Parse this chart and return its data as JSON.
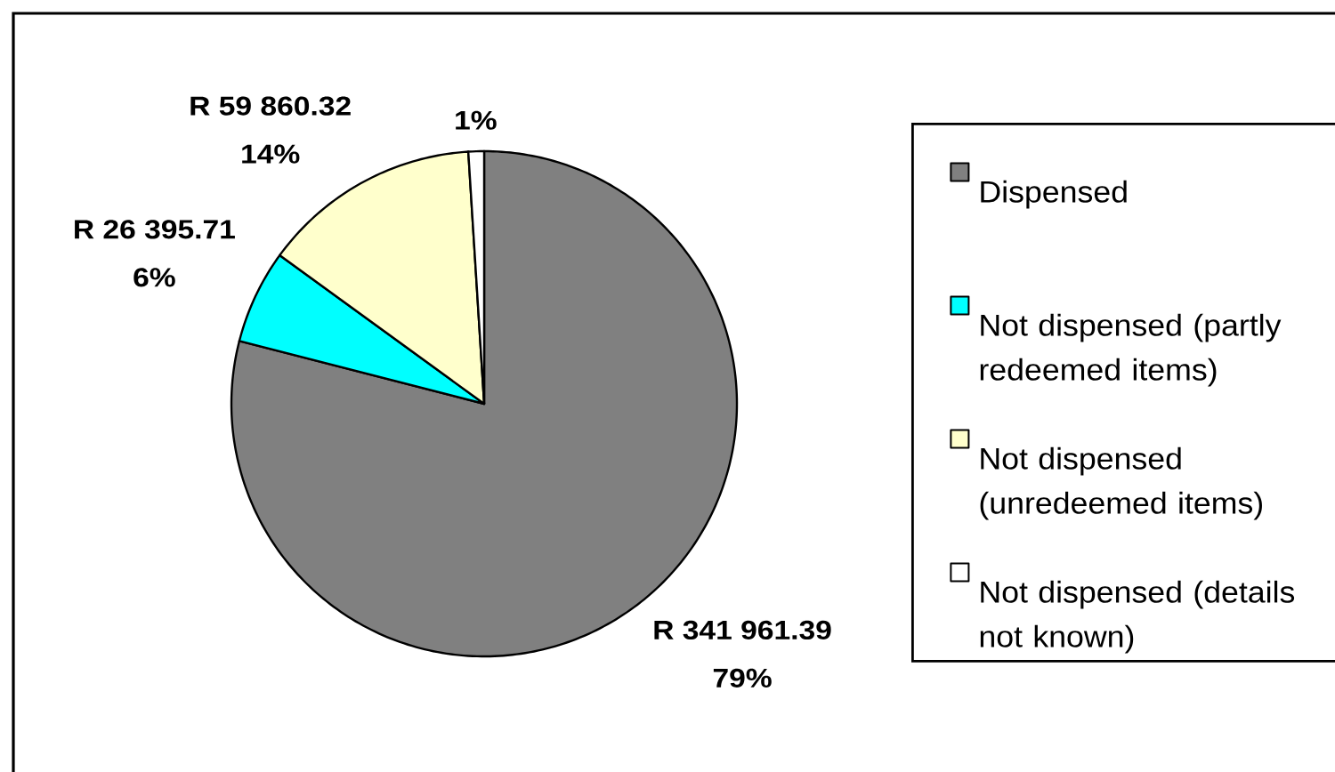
{
  "chart_data": {
    "type": "pie",
    "categories": [
      "Dispensed",
      "Not dispensed (partly redeemed items)",
      "Not dispensed (unredeemed items)",
      "Not dispensed (details not known)"
    ],
    "values": [
      79,
      6,
      14,
      1
    ],
    "colors": [
      "#808080",
      "#00ffff",
      "#ffffcc",
      "#ffffff"
    ],
    "value_labels": [
      "R 341 961.39 79%",
      "R 26 395.71 6%",
      "R 59 860.32 14%",
      "1%"
    ],
    "legend": "right"
  }
}
